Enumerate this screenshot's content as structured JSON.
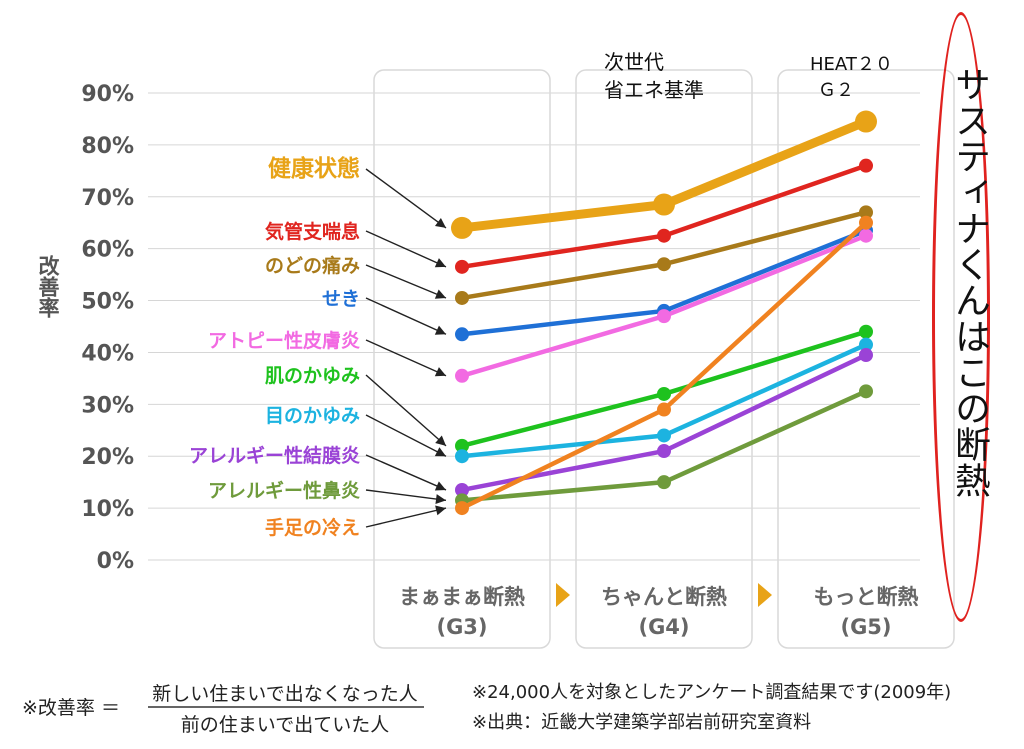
{
  "chart_data": {
    "type": "line",
    "ylabel": "改善率",
    "ylim": [
      0,
      90
    ],
    "yticks": [
      "0%",
      "10%",
      "20%",
      "30%",
      "40%",
      "50%",
      "60%",
      "70%",
      "80%",
      "90%"
    ],
    "categories": [
      {
        "name": "まぁまぁ断熱",
        "code": "(G3)"
      },
      {
        "name": "ちゃんと断熱",
        "code": "(G4)"
      },
      {
        "name": "もっと断熱",
        "code": "(G5)"
      }
    ],
    "series": [
      {
        "name": "健康状態",
        "values": [
          64,
          68.5,
          84.5
        ],
        "color": "#e8a317",
        "thick": true
      },
      {
        "name": "気管支喘息",
        "values": [
          56.5,
          62.5,
          76
        ],
        "color": "#e0251f"
      },
      {
        "name": "のどの痛み",
        "values": [
          50.5,
          57,
          67
        ],
        "color": "#a87a1a"
      },
      {
        "name": "せき",
        "values": [
          43.5,
          48,
          63.5
        ],
        "color": "#1f70d6"
      },
      {
        "name": "アトピー性皮膚炎",
        "values": [
          35.5,
          47,
          62.5
        ],
        "color": "#f26ae2"
      },
      {
        "name": "肌のかゆみ",
        "values": [
          22,
          32,
          44
        ],
        "color": "#1ec21e"
      },
      {
        "name": "目のかゆみ",
        "values": [
          20,
          24,
          41.5
        ],
        "color": "#1cb3e0"
      },
      {
        "name": "アレルギー性結膜炎",
        "values": [
          13.5,
          21,
          39.5
        ],
        "color": "#9a43d6"
      },
      {
        "name": "アレルギー性鼻炎",
        "values": [
          11.5,
          15,
          32.5
        ],
        "color": "#6f9b3c"
      },
      {
        "name": "手足の冷え",
        "values": [
          10,
          29,
          65
        ],
        "color": "#f08220"
      }
    ]
  },
  "annotations": {
    "top_g4_line1": "次世代",
    "top_g4_line2": "省エネ基準",
    "top_g5_line1": "HEAT２０",
    "top_g5_line2": "Ｇ２",
    "vertical_note": "サスティナくんはこの断熱"
  },
  "footer": {
    "formula_prefix": "※改善率 ＝",
    "numerator": "新しい住まいで出なくなった人",
    "denominator": "前の住まいで出ていた人",
    "note1": "※24,000人を対象としたアンケート調査結果です(2009年)",
    "note2": "※出典：近畿大学建築学部岩前研究室資料"
  }
}
